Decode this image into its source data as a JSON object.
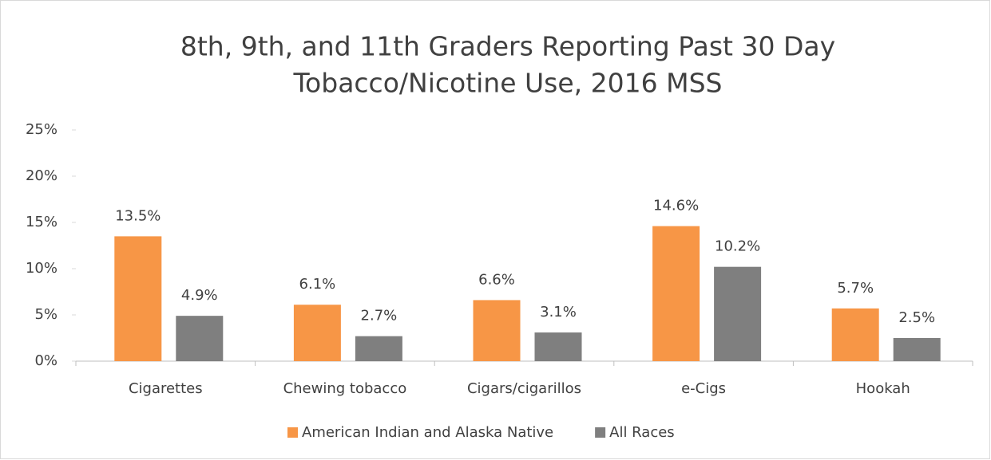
{
  "chart_data": {
    "type": "bar",
    "title": [
      "8th, 9th, and 11th Graders Reporting Past 30 Day",
      "Tobacco/Nicotine Use, 2016 MSS"
    ],
    "categories": [
      "Cigarettes",
      "Chewing tobacco",
      "Cigars/cigarillos",
      "e-Cigs",
      "Hookah"
    ],
    "series": [
      {
        "name": "American Indian and Alaska Native",
        "color": "#f79646",
        "values": [
          13.5,
          6.1,
          6.6,
          14.6,
          5.7
        ],
        "value_labels": [
          "13.5%",
          "6.1%",
          "6.6%",
          "14.6%",
          "5.7%"
        ]
      },
      {
        "name": "All Races",
        "color": "#7f7f7f",
        "values": [
          4.9,
          2.7,
          3.1,
          10.2,
          2.5
        ],
        "value_labels": [
          "4.9%",
          "2.7%",
          "3.1%",
          "10.2%",
          "2.5%"
        ]
      }
    ],
    "ylim": [
      0,
      25
    ],
    "yticks": [
      {
        "value": 0,
        "label": "0%"
      },
      {
        "value": 5,
        "label": "5%"
      },
      {
        "value": 10,
        "label": "10%"
      },
      {
        "value": 15,
        "label": "15%"
      },
      {
        "value": 20,
        "label": "20%"
      },
      {
        "value": 25,
        "label": "25%"
      }
    ],
    "grid": false,
    "legend": "bottom"
  }
}
